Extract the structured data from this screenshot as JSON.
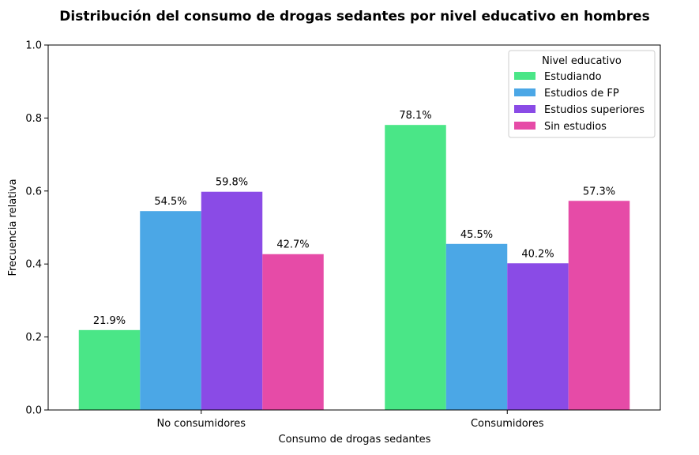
{
  "chart_data": {
    "type": "bar",
    "title": "Distribución del consumo de drogas sedantes por nivel educativo en hombres",
    "xlabel": "Consumo de drogas sedantes",
    "ylabel": "Frecuencia relativa",
    "ylim": [
      0,
      1.0
    ],
    "yticks": [
      "0.0",
      "0.2",
      "0.4",
      "0.6",
      "0.8",
      "1.0"
    ],
    "categories": [
      "No consumidores",
      "Consumidores"
    ],
    "series": [
      {
        "name": "Estudiando",
        "color": "#4ae687",
        "values": [
          0.219,
          0.781
        ],
        "labels": [
          "21.9%",
          "78.1%"
        ]
      },
      {
        "name": "Estudios de FP",
        "color": "#4ba7e6",
        "values": [
          0.545,
          0.455
        ],
        "labels": [
          "54.5%",
          "45.5%"
        ]
      },
      {
        "name": "Estudios superiores",
        "color": "#8a4be6",
        "values": [
          0.598,
          0.402
        ],
        "labels": [
          "59.8%",
          "40.2%"
        ]
      },
      {
        "name": "Sin estudios",
        "color": "#e64ba7",
        "values": [
          0.427,
          0.573
        ],
        "labels": [
          "42.7%",
          "57.3%"
        ]
      }
    ],
    "legend": {
      "title": "Nivel educativo",
      "position": "top-right"
    },
    "grid": false
  }
}
